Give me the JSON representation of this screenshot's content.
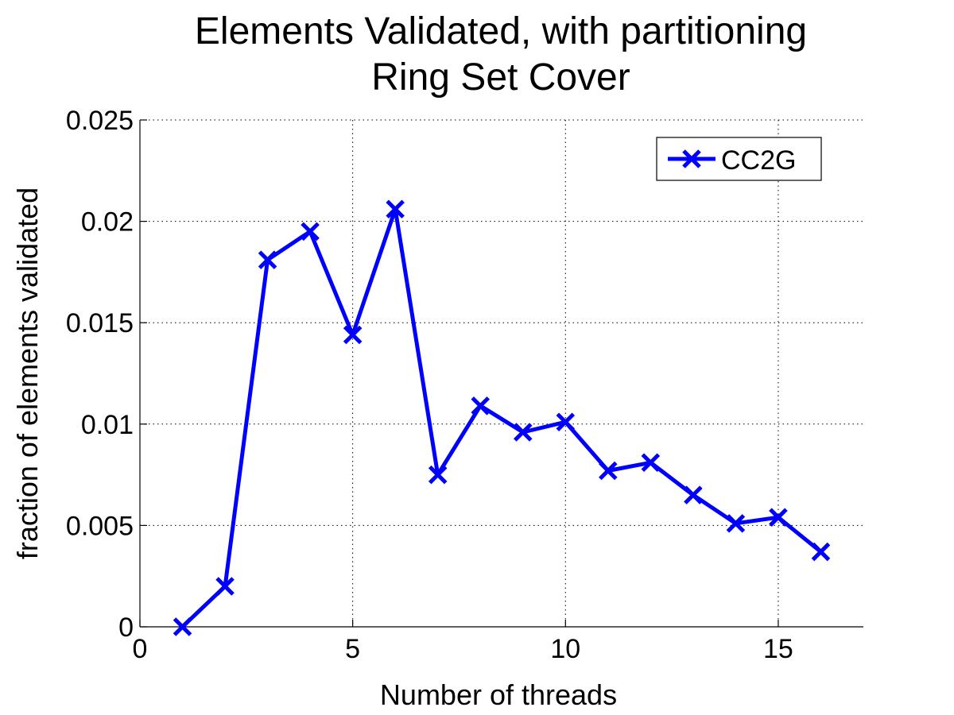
{
  "chart_data": {
    "type": "line",
    "title": [
      "Elements Validated, with partitioning",
      "Ring Set Cover"
    ],
    "xlabel": "Number of threads",
    "ylabel": "fraction of elements validated",
    "xlim": [
      0,
      17
    ],
    "ylim": [
      0,
      0.025
    ],
    "xticks": [
      0,
      5,
      10,
      15
    ],
    "xtick_labels": [
      "0",
      "5",
      "10",
      "15"
    ],
    "yticks": [
      0,
      0.005,
      0.01,
      0.015,
      0.02,
      0.025
    ],
    "ytick_labels": [
      "0",
      "0.005",
      "0.01",
      "0.015",
      "0.02",
      "0.025"
    ],
    "grid": true,
    "legend_position": "top-right",
    "series": [
      {
        "name": "CC2G",
        "color": "#0000ff",
        "marker": "x",
        "x": [
          1,
          2,
          3,
          4,
          5,
          6,
          7,
          8,
          9,
          10,
          11,
          12,
          13,
          14,
          15,
          16
        ],
        "y": [
          0,
          0.002,
          0.0181,
          0.0195,
          0.0144,
          0.0206,
          0.0075,
          0.0109,
          0.0096,
          0.0101,
          0.0077,
          0.0081,
          0.0065,
          0.0051,
          0.0054,
          0.0037
        ]
      }
    ]
  }
}
